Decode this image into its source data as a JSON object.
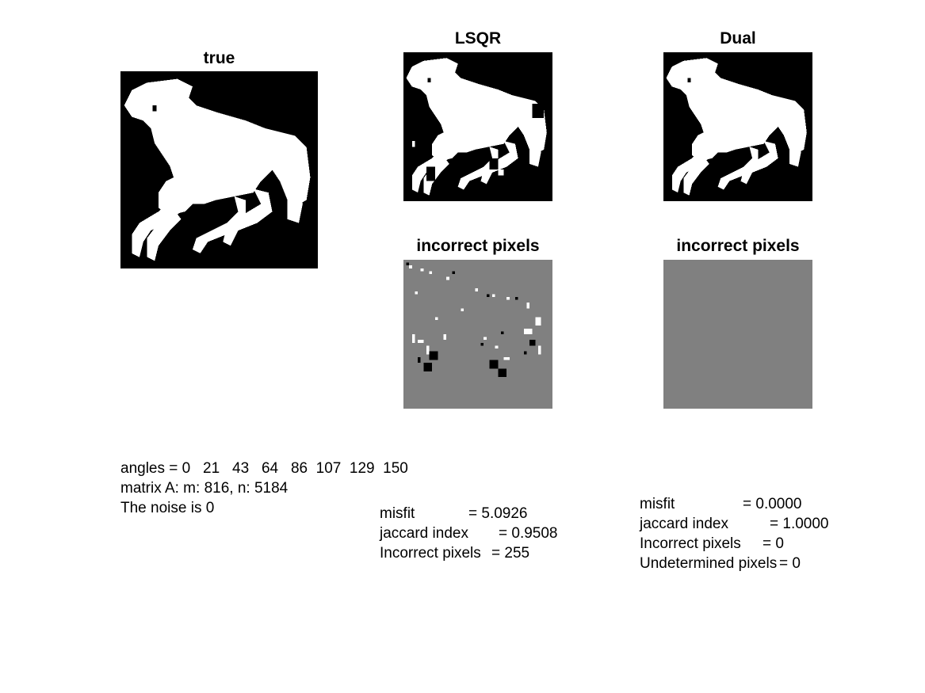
{
  "panels": {
    "true": {
      "title": "true"
    },
    "lsqr": {
      "title": "LSQR"
    },
    "dual": {
      "title": "Dual"
    },
    "lsqr_err": {
      "title": "incorrect pixels"
    },
    "dual_err": {
      "title": "incorrect pixels"
    }
  },
  "info": {
    "angles": "angles = 0   21   43   64   86  107  129  150",
    "matrix": "matrix A: m: 816, n: 5184",
    "noise": "The noise is 0"
  },
  "lsqr_stats": {
    "misfit_label": "misfit",
    "misfit_value": "= 5.0926",
    "jaccard_label": "jaccard index",
    "jaccard_value": "= 0.9508",
    "incorrect_label": "Incorrect pixels",
    "incorrect_value": "= 255"
  },
  "dual_stats": {
    "misfit_label": "misfit",
    "misfit_value": "= 0.0000",
    "jaccard_label": "jaccard index",
    "jaccard_value": "= 1.0000",
    "incorrect_label": "Incorrect pixels",
    "incorrect_value": "= 0",
    "undetermined_label": "Undetermined pixels",
    "undetermined_value": "= 0"
  },
  "colors": {
    "background": "#000000",
    "foreground": "#ffffff",
    "neutral": "#808080"
  }
}
